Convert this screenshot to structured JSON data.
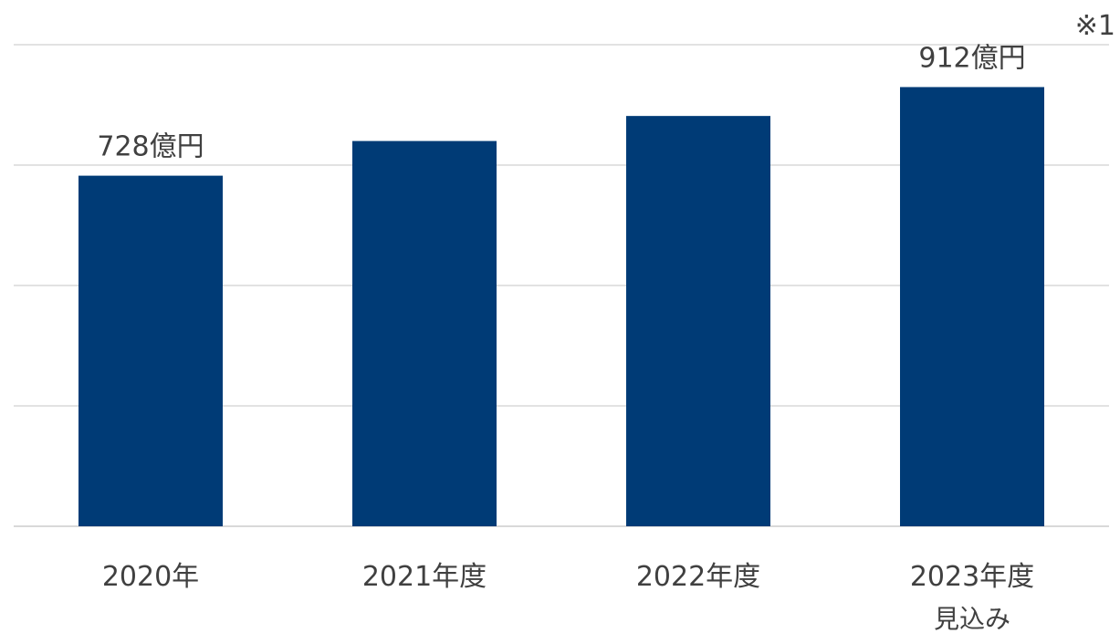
{
  "chart_data": {
    "type": "bar",
    "title": "",
    "xlabel": "",
    "ylabel": "",
    "categories": [
      "2020年",
      "2021年度",
      "2022年度",
      "2023年度"
    ],
    "category_sublabels": [
      "",
      "",
      "",
      "見込み"
    ],
    "values": [
      728,
      800,
      852,
      912
    ],
    "data_labels": [
      "728億円",
      "",
      "",
      "912億円"
    ],
    "ylim": [
      0,
      1000
    ],
    "grid": true,
    "legend": "none",
    "bar_color": "#003B76",
    "note": "※1"
  }
}
